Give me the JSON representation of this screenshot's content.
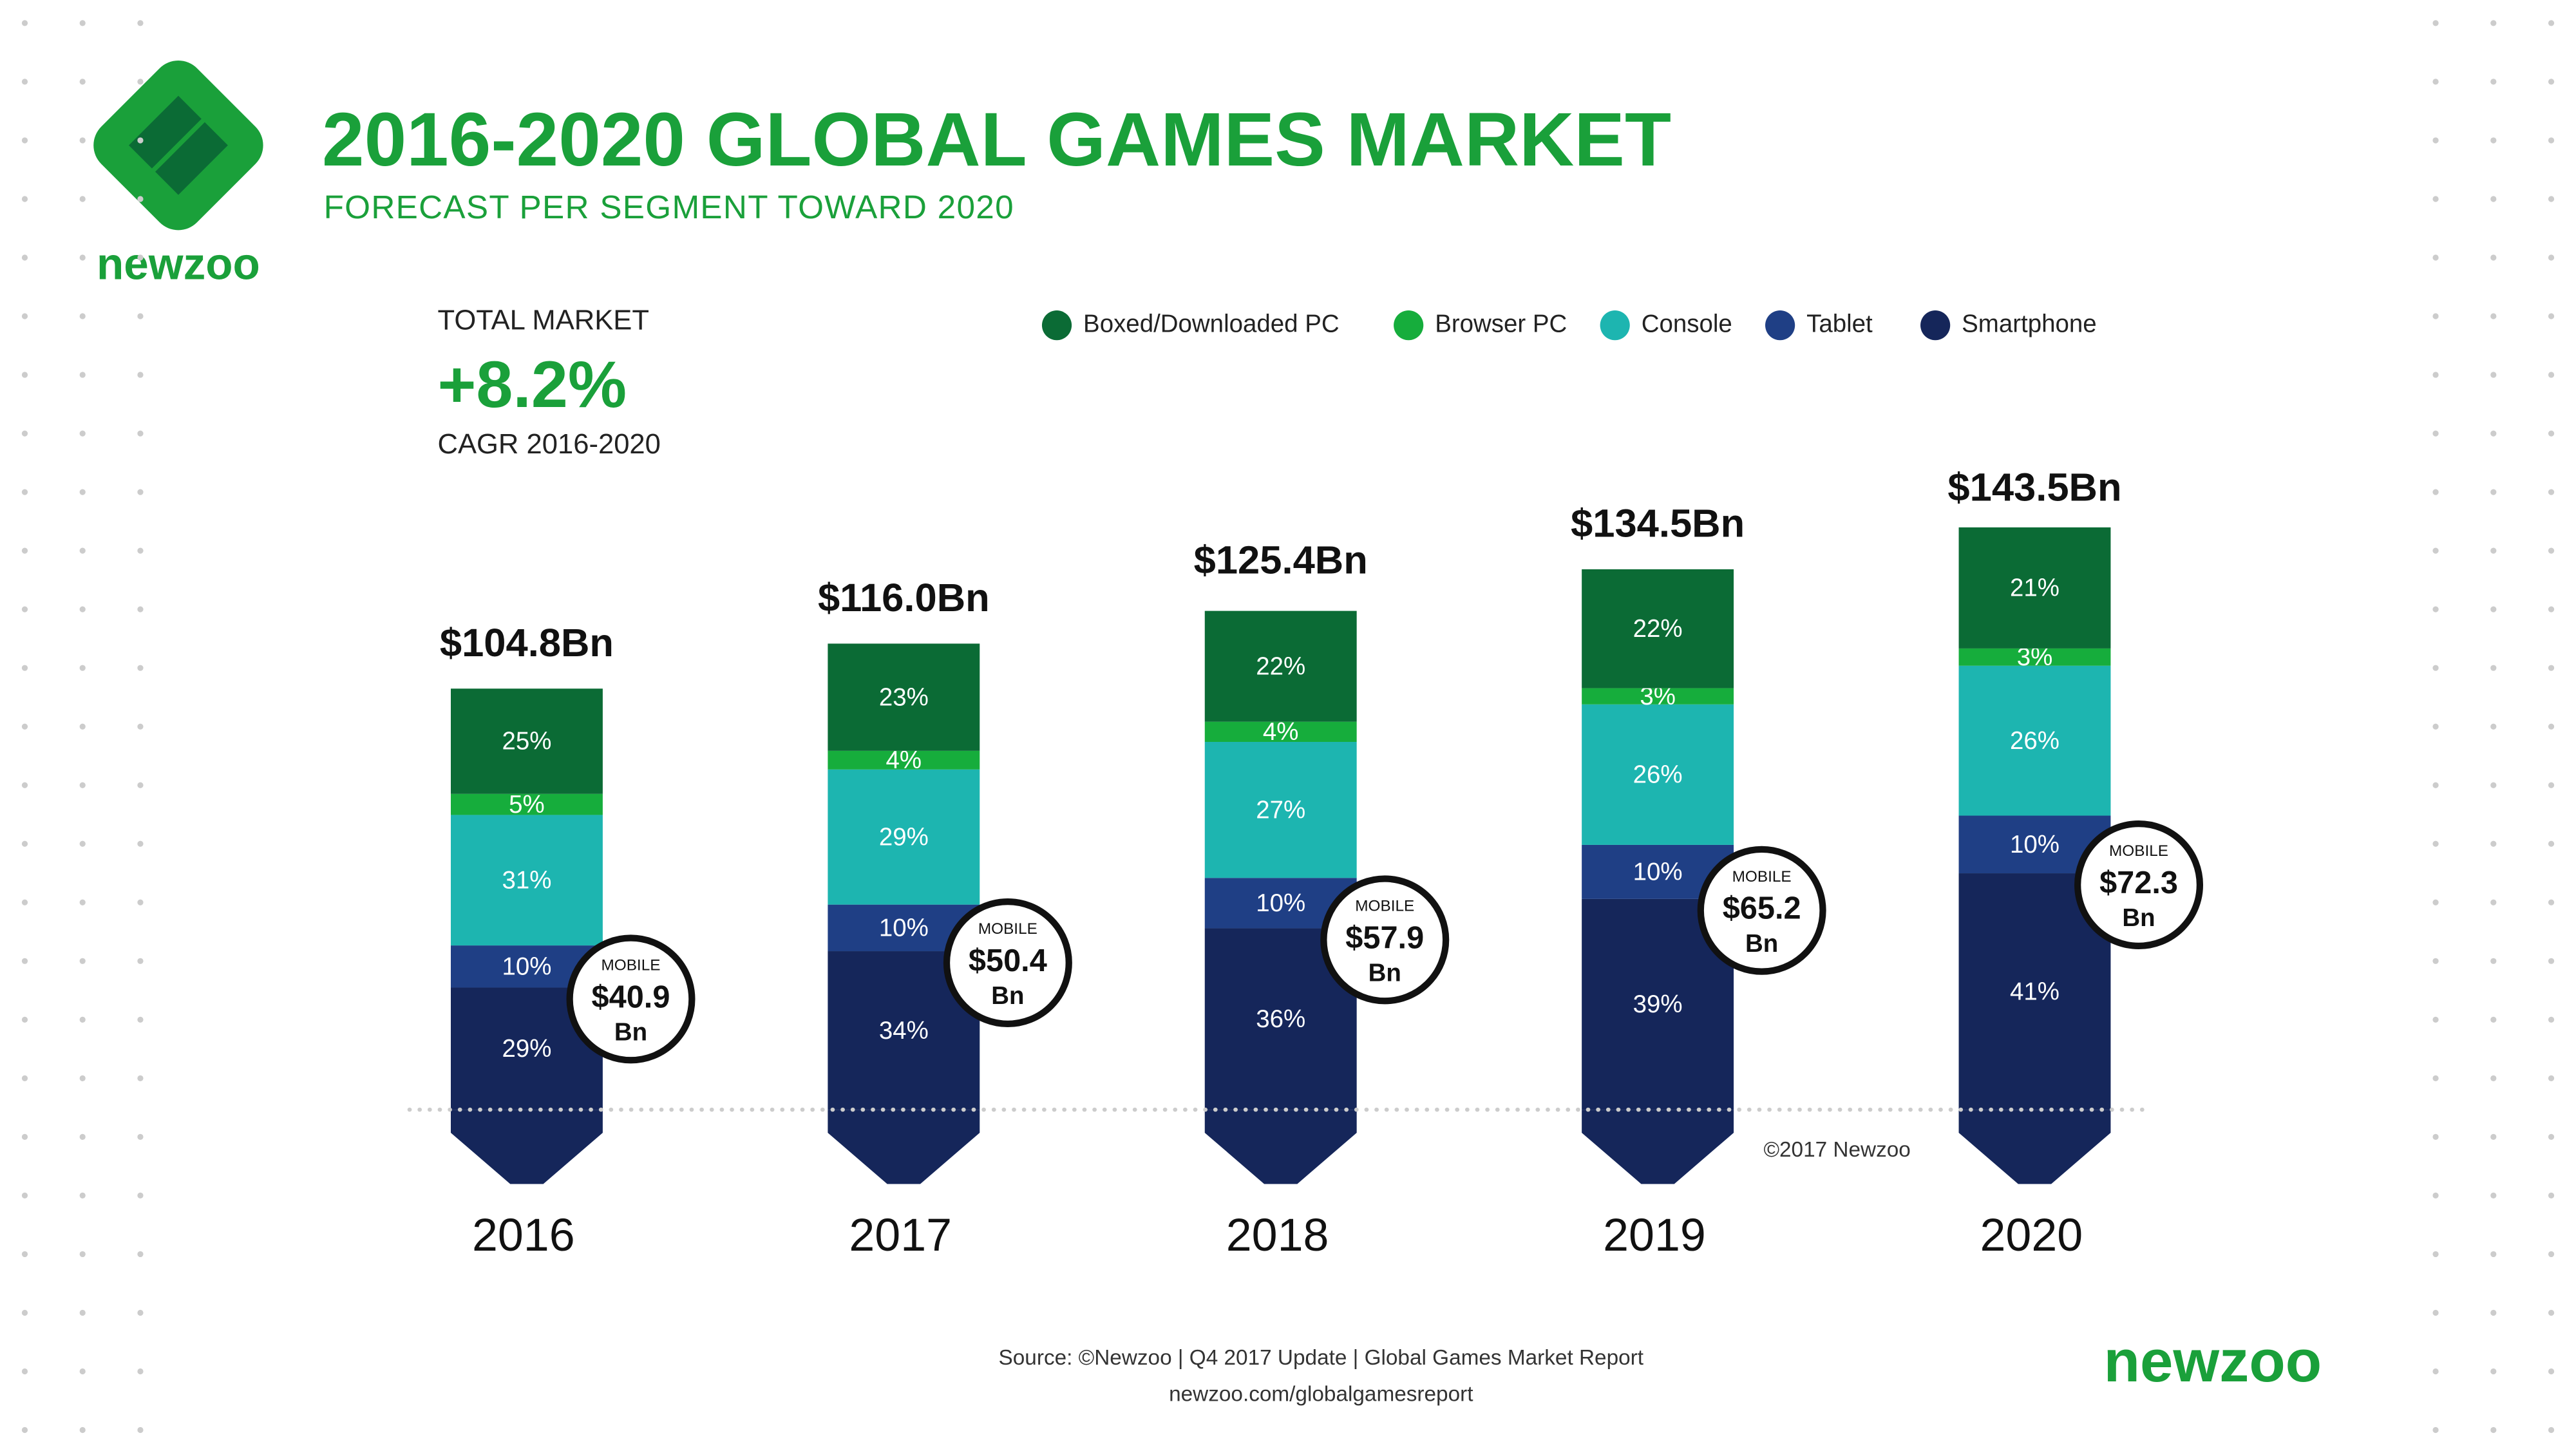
{
  "header": {
    "logo_text": "newzoo",
    "title": "2016-2020 GLOBAL GAMES MARKET",
    "subtitle": "FORECAST PER SEGMENT TOWARD 2020"
  },
  "summary": {
    "label": "TOTAL MARKET",
    "value": "+8.2%",
    "period": "CAGR 2016-2020"
  },
  "chart_data": {
    "type": "bar",
    "stacked": true,
    "categories": [
      "2016",
      "2017",
      "2018",
      "2019",
      "2020"
    ],
    "series": [
      {
        "name": "Smartphone",
        "color": "#15265a",
        "values": [
          29,
          34,
          36,
          39,
          41
        ],
        "value_labels": [
          "29%",
          "34%",
          "36%",
          "39%",
          "41%"
        ]
      },
      {
        "name": "Tablet",
        "color": "#1f3f85",
        "values": [
          10,
          10,
          10,
          10,
          10
        ],
        "value_labels": [
          "10%",
          "10%",
          "10%",
          "10%",
          "10%"
        ]
      },
      {
        "name": "Console",
        "color": "#1db5b0",
        "values": [
          31,
          29,
          27,
          26,
          26
        ],
        "value_labels": [
          "31%",
          "29%",
          "27%",
          "26%",
          "26%"
        ]
      },
      {
        "name": "Browser PC",
        "color": "#16ad3c",
        "values": [
          5,
          4,
          4,
          3,
          3
        ],
        "value_labels": [
          "5%",
          "4%",
          "4%",
          "3%",
          "3%"
        ]
      },
      {
        "name": "Boxed/Downloaded PC",
        "color": "#0b6b35",
        "values": [
          25,
          23,
          22,
          22,
          21
        ],
        "value_labels": [
          "25%",
          "23%",
          "22%",
          "22%",
          "21%"
        ]
      }
    ],
    "totals": {
      "values": [
        104.8,
        116.0,
        125.4,
        134.5,
        143.5
      ],
      "value_labels": [
        "$104.8Bn",
        "$116.0Bn",
        "$125.4Bn",
        "$134.5Bn",
        "$143.5Bn"
      ]
    },
    "mobile": {
      "label": "MOBILE",
      "unit": "Bn",
      "values": [
        40.9,
        50.4,
        57.9,
        65.2,
        72.3
      ],
      "value_labels": [
        "$40.9",
        "$50.4",
        "$57.9",
        "$65.2",
        "$72.3"
      ]
    },
    "legend_order": [
      4,
      3,
      2,
      1,
      0
    ],
    "copyright": "©2017 Newzoo"
  },
  "footer": {
    "source": "Source: ©Newzoo | Q4 2017 Update | Global Games Market Report",
    "url": "newzoo.com/globalgamesreport",
    "logo_text": "newzoo"
  }
}
